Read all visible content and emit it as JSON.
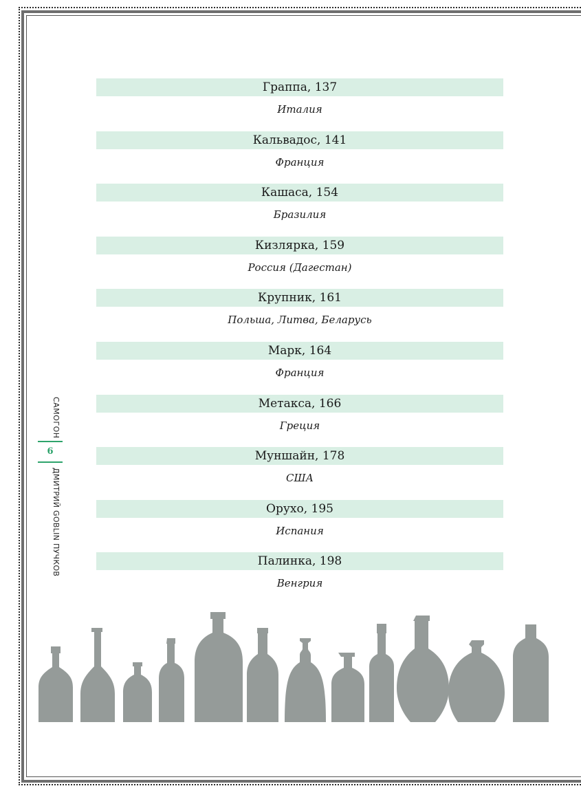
{
  "entries": [
    {
      "title": "Граппа, 137",
      "country": "Италия"
    },
    {
      "title": "Кальвадос, 141",
      "country": "Франция"
    },
    {
      "title": "Кашаса, 154",
      "country": "Бразилия"
    },
    {
      "title": "Кизлярка, 159",
      "country": "Россия (Дагестан)"
    },
    {
      "title": "Крупник, 161",
      "country": "Польша, Литва, Беларусь"
    },
    {
      "title": "Марк, 164",
      "country": "Франция"
    },
    {
      "title": "Метакса, 166",
      "country": "Греция"
    },
    {
      "title": "Муншайн, 178",
      "country": "США"
    },
    {
      "title": "Орухо, 195",
      "country": "Испания"
    },
    {
      "title": "Палинка, 198",
      "country": "Венгрия"
    }
  ],
  "sidebar": {
    "section": "САМОГОН",
    "page_number": "6",
    "author": "ДМИТРИЙ GOBLIN ПУЧКОВ"
  },
  "colors": {
    "title_band": "#d9efe4",
    "accent": "#2da36b",
    "bottles": "#959b99"
  },
  "decoration": {
    "bottle_icon": "bottle-silhouette-icon"
  }
}
